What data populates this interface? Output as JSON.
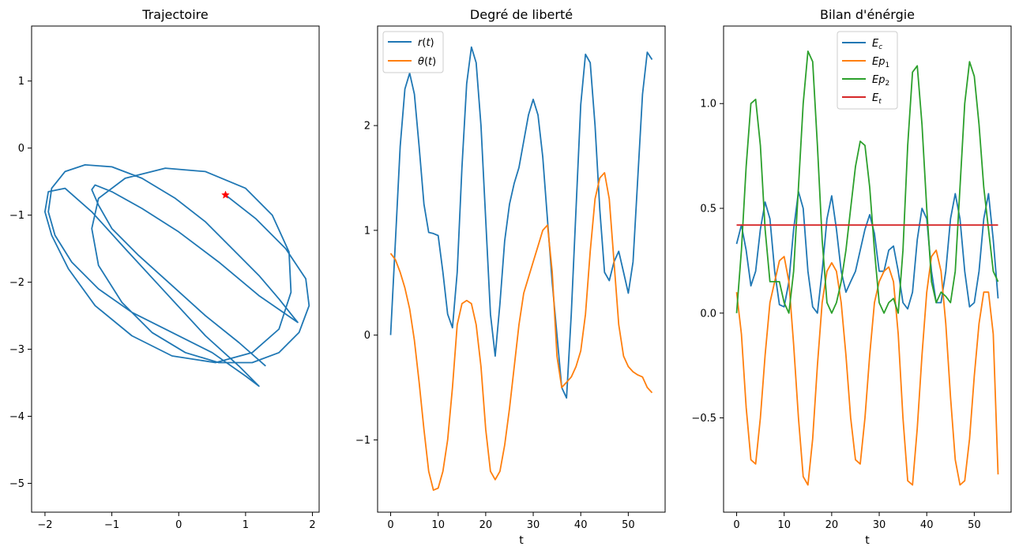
{
  "chart_data": [
    {
      "type": "line",
      "title": "Trajectoire",
      "xlabel": "",
      "ylabel": "",
      "xlim": [
        -2.2,
        2.1
      ],
      "ylim": [
        -5.43,
        1.82
      ],
      "xticks": [
        -2,
        -1,
        0,
        1,
        2
      ],
      "yticks": [
        -5,
        -4,
        -3,
        -2,
        -1,
        0,
        1
      ],
      "xtick_labels": [
        "−2",
        "−1",
        "0",
        "1",
        "2"
      ],
      "ytick_labels": [
        "−5",
        "−4",
        "−3",
        "−2",
        "−1",
        "0",
        "1"
      ],
      "grid": false,
      "series": [
        {
          "color": "#1f77b4",
          "x": [
            0.7,
            1.15,
            1.6,
            1.9,
            1.95,
            1.8,
            1.5,
            1.1,
            0.6,
            0.1,
            -0.4,
            -0.85,
            -1.2,
            -1.3,
            -1.2,
            -0.8,
            -0.2,
            0.4,
            1.0,
            1.4,
            1.65,
            1.68,
            1.5,
            1.1,
            0.55,
            -0.1,
            -0.7,
            -1.25,
            -1.65,
            -1.9,
            -2.0,
            -1.95,
            -1.7,
            -1.3,
            -0.8,
            -0.2,
            0.4,
            0.9,
            1.2,
            1.0,
            0.5,
            -0.1,
            -0.7,
            -1.2,
            -1.6,
            -1.85,
            -1.95,
            -1.9,
            -1.7,
            -1.4,
            -1.0,
            -0.55,
            -0.05,
            0.4,
            0.8,
            1.2,
            1.5,
            1.7,
            1.78,
            1.2,
            0.6,
            0.0,
            -0.55,
            -1.0,
            -1.25,
            -1.3,
            -1.2,
            -1.0,
            -0.6,
            -0.1,
            0.4,
            0.9,
            1.3
          ],
          "y": [
            -0.7,
            -1.05,
            -1.5,
            -1.95,
            -2.35,
            -2.75,
            -3.05,
            -3.2,
            -3.2,
            -3.05,
            -2.75,
            -2.3,
            -1.75,
            -1.2,
            -0.75,
            -0.45,
            -0.3,
            -0.35,
            -0.6,
            -1.0,
            -1.55,
            -2.15,
            -2.7,
            -3.05,
            -3.2,
            -3.1,
            -2.8,
            -2.35,
            -1.8,
            -1.3,
            -0.95,
            -0.65,
            -0.6,
            -0.95,
            -1.5,
            -2.15,
            -2.8,
            -3.25,
            -3.55,
            -3.4,
            -3.05,
            -2.75,
            -2.45,
            -2.1,
            -1.7,
            -1.3,
            -0.95,
            -0.6,
            -0.35,
            -0.25,
            -0.28,
            -0.45,
            -0.75,
            -1.1,
            -1.5,
            -1.9,
            -2.25,
            -2.5,
            -2.6,
            -2.2,
            -1.7,
            -1.25,
            -0.9,
            -0.65,
            -0.55,
            -0.62,
            -0.85,
            -1.2,
            -1.6,
            -2.05,
            -2.5,
            -2.9,
            -3.25
          ]
        }
      ],
      "marker": {
        "x": 0.7,
        "y": -0.7,
        "shape": "star",
        "color": "#ff0000"
      }
    },
    {
      "type": "line",
      "title": "Degré de liberté",
      "xlabel": "t",
      "ylabel": "",
      "xlim": [
        -2.75,
        57.75
      ],
      "ylim": [
        -1.69,
        2.95
      ],
      "xticks": [
        0,
        10,
        20,
        30,
        40,
        50
      ],
      "yticks": [
        -1,
        0,
        1,
        2
      ],
      "xtick_labels": [
        "0",
        "10",
        "20",
        "30",
        "40",
        "50"
      ],
      "ytick_labels": [
        "−1",
        "0",
        "1",
        "2"
      ],
      "grid": false,
      "legend_position": "top-left",
      "legend": [
        "r(t)",
        "θ(t)"
      ],
      "series": [
        {
          "name": "r(t)",
          "color": "#1f77b4",
          "x": [
            0,
            1,
            2,
            3,
            4,
            5,
            6,
            7,
            8,
            9,
            10,
            11,
            12,
            13,
            14,
            15,
            16,
            17,
            18,
            19,
            20,
            21,
            22,
            23,
            24,
            25,
            26,
            27,
            28,
            29,
            30,
            31,
            32,
            33,
            34,
            35,
            36,
            37,
            38,
            39,
            40,
            41,
            42,
            43,
            44,
            45,
            46,
            47,
            48,
            49,
            50,
            51,
            52,
            53,
            54,
            55
          ],
          "y": [
            0,
            0.9,
            1.8,
            2.35,
            2.5,
            2.3,
            1.8,
            1.25,
            0.98,
            0.97,
            0.95,
            0.6,
            0.2,
            0.07,
            0.6,
            1.6,
            2.4,
            2.75,
            2.6,
            2.0,
            1.1,
            0.2,
            -0.2,
            0.3,
            0.9,
            1.25,
            1.45,
            1.6,
            1.85,
            2.1,
            2.25,
            2.1,
            1.7,
            1.1,
            0.5,
            0.0,
            -0.5,
            -0.6,
            0.2,
            1.2,
            2.2,
            2.68,
            2.6,
            2.0,
            1.2,
            0.6,
            0.52,
            0.7,
            0.8,
            0.6,
            0.4,
            0.7,
            1.5,
            2.3,
            2.7,
            2.63
          ]
        },
        {
          "name": "θ(t)",
          "color": "#ff7f0e",
          "x": [
            0,
            1,
            2,
            3,
            4,
            5,
            6,
            7,
            8,
            9,
            10,
            11,
            12,
            13,
            14,
            15,
            16,
            17,
            18,
            19,
            20,
            21,
            22,
            23,
            24,
            25,
            26,
            27,
            28,
            29,
            30,
            31,
            32,
            33,
            34,
            35,
            36,
            37,
            38,
            39,
            40,
            41,
            42,
            43,
            44,
            45,
            46,
            47,
            48,
            49,
            50,
            51,
            52,
            53,
            54,
            55
          ],
          "y": [
            0.78,
            0.72,
            0.6,
            0.45,
            0.25,
            -0.05,
            -0.45,
            -0.9,
            -1.3,
            -1.48,
            -1.46,
            -1.3,
            -1.0,
            -0.5,
            0.1,
            0.3,
            0.33,
            0.3,
            0.1,
            -0.3,
            -0.9,
            -1.3,
            -1.38,
            -1.3,
            -1.05,
            -0.7,
            -0.3,
            0.1,
            0.4,
            0.55,
            0.7,
            0.85,
            1.0,
            1.05,
            0.6,
            -0.2,
            -0.5,
            -0.45,
            -0.4,
            -0.3,
            -0.15,
            0.2,
            0.8,
            1.3,
            1.5,
            1.55,
            1.3,
            0.7,
            0.1,
            -0.2,
            -0.3,
            -0.35,
            -0.38,
            -0.4,
            -0.5,
            -0.55
          ]
        }
      ]
    },
    {
      "type": "line",
      "title": "Bilan d'énérgie",
      "xlabel": "t",
      "ylabel": "",
      "xlim": [
        -2.75,
        57.75
      ],
      "ylim": [
        -0.95,
        1.37
      ],
      "xticks": [
        0,
        10,
        20,
        30,
        40,
        50
      ],
      "yticks": [
        -0.5,
        0.0,
        0.5,
        1.0
      ],
      "xtick_labels": [
        "0",
        "10",
        "20",
        "30",
        "40",
        "50"
      ],
      "ytick_labels": [
        "−0.5",
        "0.0",
        "0.5",
        "1.0"
      ],
      "grid": false,
      "legend_position": "top-center",
      "legend": [
        "Ec",
        "Ep1",
        "Ep2",
        "Et"
      ],
      "series": [
        {
          "name": "Ec",
          "color": "#1f77b4",
          "x": [
            0,
            1,
            2,
            3,
            4,
            5,
            6,
            7,
            8,
            9,
            10,
            11,
            12,
            13,
            14,
            15,
            16,
            17,
            18,
            19,
            20,
            21,
            22,
            23,
            24,
            25,
            26,
            27,
            28,
            29,
            30,
            31,
            32,
            33,
            34,
            35,
            36,
            37,
            38,
            39,
            40,
            41,
            42,
            43,
            44,
            45,
            46,
            47,
            48,
            49,
            50,
            51,
            52,
            53,
            54,
            55
          ],
          "y": [
            0.33,
            0.42,
            0.3,
            0.13,
            0.2,
            0.4,
            0.53,
            0.45,
            0.2,
            0.04,
            0.03,
            0.15,
            0.4,
            0.58,
            0.5,
            0.2,
            0.03,
            0.0,
            0.2,
            0.45,
            0.56,
            0.4,
            0.2,
            0.1,
            0.15,
            0.2,
            0.3,
            0.4,
            0.47,
            0.38,
            0.2,
            0.2,
            0.3,
            0.32,
            0.2,
            0.05,
            0.02,
            0.1,
            0.35,
            0.5,
            0.45,
            0.2,
            0.05,
            0.05,
            0.2,
            0.45,
            0.57,
            0.45,
            0.2,
            0.03,
            0.05,
            0.2,
            0.45,
            0.57,
            0.35,
            0.07
          ]
        },
        {
          "name": "Ep1",
          "color": "#ff7f0e",
          "x": [
            0,
            1,
            2,
            3,
            4,
            5,
            6,
            7,
            8,
            9,
            10,
            11,
            12,
            13,
            14,
            15,
            16,
            17,
            18,
            19,
            20,
            21,
            22,
            23,
            24,
            25,
            26,
            27,
            28,
            29,
            30,
            31,
            32,
            33,
            34,
            35,
            36,
            37,
            38,
            39,
            40,
            41,
            42,
            43,
            44,
            45,
            46,
            47,
            48,
            49,
            50,
            51,
            52,
            53,
            54,
            55
          ],
          "y": [
            0.1,
            -0.1,
            -0.45,
            -0.7,
            -0.72,
            -0.5,
            -0.2,
            0.05,
            0.15,
            0.25,
            0.27,
            0.15,
            -0.15,
            -0.5,
            -0.78,
            -0.82,
            -0.6,
            -0.25,
            0.05,
            0.2,
            0.24,
            0.2,
            0.05,
            -0.2,
            -0.5,
            -0.7,
            -0.72,
            -0.5,
            -0.2,
            0.05,
            0.15,
            0.2,
            0.22,
            0.15,
            -0.1,
            -0.5,
            -0.8,
            -0.82,
            -0.55,
            -0.2,
            0.1,
            0.27,
            0.3,
            0.2,
            -0.05,
            -0.4,
            -0.7,
            -0.82,
            -0.8,
            -0.6,
            -0.3,
            -0.05,
            0.1,
            0.1,
            -0.1,
            -0.77
          ]
        },
        {
          "name": "Ep2",
          "color": "#2ca02c",
          "x": [
            0,
            1,
            2,
            3,
            4,
            5,
            6,
            7,
            8,
            9,
            10,
            11,
            12,
            13,
            14,
            15,
            16,
            17,
            18,
            19,
            20,
            21,
            22,
            23,
            24,
            25,
            26,
            27,
            28,
            29,
            30,
            31,
            32,
            33,
            34,
            35,
            36,
            37,
            38,
            39,
            40,
            41,
            42,
            43,
            44,
            45,
            46,
            47,
            48,
            49,
            50,
            51,
            52,
            53,
            54,
            55
          ],
          "y": [
            0.0,
            0.3,
            0.7,
            1.0,
            1.02,
            0.8,
            0.4,
            0.15,
            0.15,
            0.15,
            0.05,
            0.0,
            0.2,
            0.6,
            1.0,
            1.25,
            1.2,
            0.8,
            0.35,
            0.05,
            0.0,
            0.05,
            0.15,
            0.3,
            0.5,
            0.7,
            0.82,
            0.8,
            0.6,
            0.3,
            0.05,
            0.0,
            0.05,
            0.07,
            0.0,
            0.3,
            0.8,
            1.15,
            1.18,
            0.9,
            0.5,
            0.15,
            0.05,
            0.1,
            0.08,
            0.05,
            0.2,
            0.6,
            1.0,
            1.2,
            1.13,
            0.9,
            0.6,
            0.4,
            0.2,
            0.15
          ]
        },
        {
          "name": "Et",
          "color": "#d62728",
          "x": [
            0,
            55
          ],
          "y": [
            0.42,
            0.42
          ]
        }
      ]
    }
  ]
}
